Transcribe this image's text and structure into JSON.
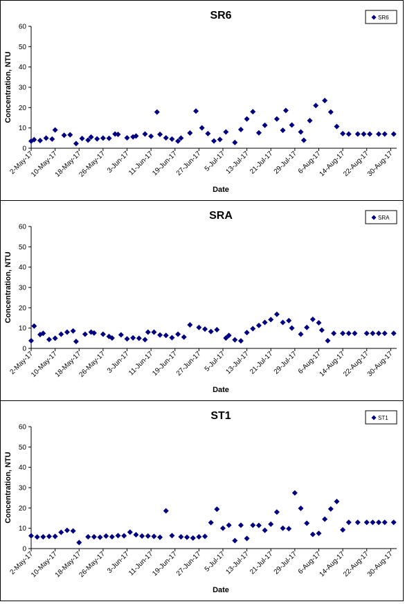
{
  "chart_data": [
    {
      "type": "scatter",
      "title": "SR6",
      "xlabel": "Date",
      "ylabel": "Concentration, NTU",
      "ylim": [
        0,
        60
      ],
      "yticks": [
        "0",
        "10",
        "20",
        "30",
        "40",
        "50",
        "60"
      ],
      "xlim": [
        "2017-05-02",
        "2017-09-01"
      ],
      "xticks": [
        {
          "date": "2017-05-02",
          "label": "2-May-17"
        },
        {
          "date": "2017-05-10",
          "label": "10-May-17"
        },
        {
          "date": "2017-05-18",
          "label": "18-May-17"
        },
        {
          "date": "2017-05-26",
          "label": "26-May-17"
        },
        {
          "date": "2017-06-03",
          "label": "3-Jun-17"
        },
        {
          "date": "2017-06-11",
          "label": "11-Jun-17"
        },
        {
          "date": "2017-06-19",
          "label": "19-Jun-17"
        },
        {
          "date": "2017-06-27",
          "label": "27-Jun-17"
        },
        {
          "date": "2017-07-05",
          "label": "5-Jul-17"
        },
        {
          "date": "2017-07-13",
          "label": "13-Jul-17"
        },
        {
          "date": "2017-07-21",
          "label": "21-Jul-17"
        },
        {
          "date": "2017-07-29",
          "label": "29-Jul-17"
        },
        {
          "date": "2017-08-06",
          "label": "6-Aug-17"
        },
        {
          "date": "2017-08-14",
          "label": "14-Aug-17"
        },
        {
          "date": "2017-08-22",
          "label": "22-Aug-17"
        },
        {
          "date": "2017-08-30",
          "label": "30-Aug-17"
        }
      ],
      "legend": {
        "position": "top-right",
        "label": "SR6"
      },
      "marker_color": "#000080",
      "grid": false,
      "series": [
        {
          "name": "SR6",
          "x": [
            "2017-05-02",
            "2017-05-03",
            "2017-05-05",
            "2017-05-07",
            "2017-05-09",
            "2017-05-10",
            "2017-05-13",
            "2017-05-15",
            "2017-05-17",
            "2017-05-19",
            "2017-05-21",
            "2017-05-22",
            "2017-05-24",
            "2017-05-26",
            "2017-05-28",
            "2017-05-30",
            "2017-05-31",
            "2017-06-03",
            "2017-06-05",
            "2017-06-06",
            "2017-06-09",
            "2017-06-11",
            "2017-06-13",
            "2017-06-14",
            "2017-06-16",
            "2017-06-18",
            "2017-06-20",
            "2017-06-21",
            "2017-06-24",
            "2017-06-26",
            "2017-06-28",
            "2017-06-30",
            "2017-07-02",
            "2017-07-04",
            "2017-07-06",
            "2017-07-09",
            "2017-07-11",
            "2017-07-13",
            "2017-07-15",
            "2017-07-17",
            "2017-07-19",
            "2017-07-23",
            "2017-07-25",
            "2017-07-26",
            "2017-07-28",
            "2017-07-31",
            "2017-08-01",
            "2017-08-03",
            "2017-08-05",
            "2017-08-08",
            "2017-08-10",
            "2017-08-12",
            "2017-08-14",
            "2017-08-16",
            "2017-08-19",
            "2017-08-21",
            "2017-08-23",
            "2017-08-26",
            "2017-08-28",
            "2017-08-31"
          ],
          "y": [
            3.5,
            4.2,
            3.8,
            5.0,
            4.5,
            9.0,
            6.4,
            6.6,
            2.3,
            4.8,
            4.0,
            5.5,
            4.6,
            5.0,
            4.9,
            7.0,
            6.8,
            5.1,
            5.6,
            6.0,
            7.0,
            5.9,
            17.8,
            6.8,
            5.1,
            4.5,
            3.5,
            5.0,
            7.5,
            18.3,
            10.0,
            7.2,
            3.6,
            4.3,
            8.0,
            2.8,
            9.2,
            14.4,
            18.0,
            7.6,
            11.3,
            14.4,
            8.8,
            18.6,
            11.4,
            8.0,
            3.9,
            13.6,
            21.0,
            23.5,
            17.8,
            10.7,
            7.2,
            7.0,
            7.0,
            7.0,
            7.0,
            7.0,
            7.0,
            7.0
          ]
        }
      ]
    },
    {
      "type": "scatter",
      "title": "SRA",
      "xlabel": "Date",
      "ylabel": "Concentration, NTU",
      "ylim": [
        0,
        60
      ],
      "yticks": [
        "0",
        "10",
        "20",
        "30",
        "40",
        "50",
        "60"
      ],
      "xlim": [
        "2017-05-02",
        "2017-09-01"
      ],
      "xticks": [
        {
          "date": "2017-05-02",
          "label": "2-May-17"
        },
        {
          "date": "2017-05-10",
          "label": "10-May-17"
        },
        {
          "date": "2017-05-18",
          "label": "18-May-17"
        },
        {
          "date": "2017-05-26",
          "label": "26-May-17"
        },
        {
          "date": "2017-06-03",
          "label": "3-Jun-17"
        },
        {
          "date": "2017-06-11",
          "label": "11-Jun-17"
        },
        {
          "date": "2017-06-19",
          "label": "19-Jun-17"
        },
        {
          "date": "2017-06-27",
          "label": "27-Jun-17"
        },
        {
          "date": "2017-07-05",
          "label": "5-Jul-17"
        },
        {
          "date": "2017-07-13",
          "label": "13-Jul-17"
        },
        {
          "date": "2017-07-21",
          "label": "21-Jul-17"
        },
        {
          "date": "2017-07-29",
          "label": "29-Jul-17"
        },
        {
          "date": "2017-08-06",
          "label": "6-Aug-17"
        },
        {
          "date": "2017-08-14",
          "label": "14-Aug-17"
        },
        {
          "date": "2017-08-22",
          "label": "22-Aug-17"
        },
        {
          "date": "2017-08-30",
          "label": "30-Aug-17"
        }
      ],
      "legend": {
        "position": "top-right",
        "label": "SRA"
      },
      "marker_color": "#000080",
      "grid": false,
      "series": [
        {
          "name": "SRA",
          "x": [
            "2017-05-02",
            "2017-05-03",
            "2017-05-05",
            "2017-05-06",
            "2017-05-08",
            "2017-05-10",
            "2017-05-12",
            "2017-05-14",
            "2017-05-16",
            "2017-05-17",
            "2017-05-20",
            "2017-05-22",
            "2017-05-23",
            "2017-05-26",
            "2017-05-28",
            "2017-05-29",
            "2017-06-01",
            "2017-06-03",
            "2017-06-05",
            "2017-06-07",
            "2017-06-09",
            "2017-06-10",
            "2017-06-12",
            "2017-06-14",
            "2017-06-16",
            "2017-06-18",
            "2017-06-20",
            "2017-06-22",
            "2017-06-24",
            "2017-06-27",
            "2017-06-29",
            "2017-07-01",
            "2017-07-03",
            "2017-07-06",
            "2017-07-07",
            "2017-07-09",
            "2017-07-11",
            "2017-07-13",
            "2017-07-15",
            "2017-07-17",
            "2017-07-19",
            "2017-07-21",
            "2017-07-23",
            "2017-07-25",
            "2017-07-27",
            "2017-07-28",
            "2017-07-31",
            "2017-08-02",
            "2017-08-04",
            "2017-08-06",
            "2017-08-07",
            "2017-08-09",
            "2017-08-11",
            "2017-08-14",
            "2017-08-16",
            "2017-08-18",
            "2017-08-22",
            "2017-08-24",
            "2017-08-26",
            "2017-08-28",
            "2017-08-31"
          ],
          "y": [
            3.8,
            11.0,
            6.8,
            7.4,
            4.4,
            5.0,
            7.0,
            8.0,
            8.6,
            3.4,
            7.0,
            8.0,
            7.6,
            7.0,
            5.9,
            5.1,
            6.7,
            4.7,
            5.2,
            5.0,
            4.3,
            8.0,
            8.0,
            6.6,
            6.4,
            5.3,
            7.0,
            5.6,
            11.6,
            10.3,
            9.5,
            8.3,
            9.2,
            5.1,
            6.4,
            4.2,
            3.7,
            7.8,
            9.7,
            11.3,
            12.8,
            14.2,
            16.8,
            12.8,
            13.7,
            10.0,
            7.0,
            10.3,
            14.3,
            12.6,
            9.0,
            3.8,
            7.4,
            7.4,
            7.4,
            7.4,
            7.4,
            7.4,
            7.4,
            7.4,
            7.4
          ]
        }
      ]
    },
    {
      "type": "scatter",
      "title": "ST1",
      "xlabel": "Date",
      "ylabel": "Concentration, NTU",
      "ylim": [
        0,
        60
      ],
      "yticks": [
        "0",
        "10",
        "20",
        "30",
        "40",
        "50",
        "60"
      ],
      "xlim": [
        "2017-05-02",
        "2017-09-01"
      ],
      "xticks": [
        {
          "date": "2017-05-02",
          "label": "2-May-17"
        },
        {
          "date": "2017-05-10",
          "label": "10-May-17"
        },
        {
          "date": "2017-05-18",
          "label": "18-May-17"
        },
        {
          "date": "2017-05-26",
          "label": "26-May-17"
        },
        {
          "date": "2017-06-03",
          "label": "3-Jun-17"
        },
        {
          "date": "2017-06-11",
          "label": "11-Jun-17"
        },
        {
          "date": "2017-06-19",
          "label": "19-Jun-17"
        },
        {
          "date": "2017-06-27",
          "label": "27-Jun-17"
        },
        {
          "date": "2017-07-05",
          "label": "5-Jul-17"
        },
        {
          "date": "2017-07-13",
          "label": "13-Jul-17"
        },
        {
          "date": "2017-07-21",
          "label": "21-Jul-17"
        },
        {
          "date": "2017-07-29",
          "label": "29-Jul-17"
        },
        {
          "date": "2017-08-06",
          "label": "6-Aug-17"
        },
        {
          "date": "2017-08-14",
          "label": "14-Aug-17"
        },
        {
          "date": "2017-08-22",
          "label": "22-Aug-17"
        },
        {
          "date": "2017-08-30",
          "label": "30-Aug-17"
        }
      ],
      "legend": {
        "position": "top-right",
        "label": "ST1"
      },
      "marker_color": "#000080",
      "grid": false,
      "series": [
        {
          "name": "ST1",
          "x": [
            "2017-05-02",
            "2017-05-04",
            "2017-05-06",
            "2017-05-08",
            "2017-05-10",
            "2017-05-12",
            "2017-05-14",
            "2017-05-16",
            "2017-05-18",
            "2017-05-21",
            "2017-05-23",
            "2017-05-25",
            "2017-05-27",
            "2017-05-29",
            "2017-05-31",
            "2017-06-02",
            "2017-06-04",
            "2017-06-06",
            "2017-06-08",
            "2017-06-10",
            "2017-06-12",
            "2017-06-14",
            "2017-06-16",
            "2017-06-18",
            "2017-06-21",
            "2017-06-23",
            "2017-06-25",
            "2017-06-27",
            "2017-06-29",
            "2017-07-01",
            "2017-07-03",
            "2017-07-05",
            "2017-07-07",
            "2017-07-09",
            "2017-07-11",
            "2017-07-13",
            "2017-07-15",
            "2017-07-17",
            "2017-07-19",
            "2017-07-21",
            "2017-07-23",
            "2017-07-25",
            "2017-07-27",
            "2017-07-29",
            "2017-07-31",
            "2017-08-02",
            "2017-08-04",
            "2017-08-06",
            "2017-08-08",
            "2017-08-10",
            "2017-08-12",
            "2017-08-14",
            "2017-08-16",
            "2017-08-19",
            "2017-08-22",
            "2017-08-24",
            "2017-08-26",
            "2017-08-28",
            "2017-08-31"
          ],
          "y": [
            6.3,
            5.7,
            5.8,
            6.0,
            6.0,
            8.0,
            9.0,
            8.7,
            3.0,
            5.8,
            5.8,
            5.6,
            6.2,
            5.8,
            6.4,
            6.3,
            8.1,
            6.8,
            6.2,
            6.2,
            6.0,
            5.6,
            18.6,
            6.4,
            5.8,
            5.6,
            5.2,
            5.8,
            6.0,
            12.8,
            19.4,
            10.0,
            11.5,
            3.9,
            11.5,
            5.0,
            11.5,
            11.4,
            9.0,
            12.0,
            18.0,
            10.0,
            9.8,
            27.4,
            19.8,
            12.5,
            7.0,
            7.5,
            14.5,
            19.5,
            23.2,
            9.2,
            12.9,
            12.9,
            12.9,
            12.9,
            12.9,
            12.9,
            12.9
          ]
        }
      ]
    }
  ]
}
